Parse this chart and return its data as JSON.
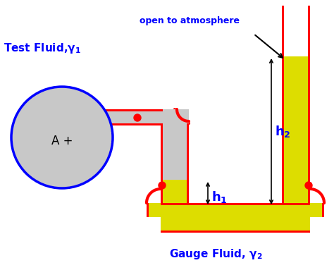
{
  "bg_color": "#ffffff",
  "tube_yellow": "#DDDD00",
  "tube_red": "#FF0000",
  "tube_gray": "#C8C8C8",
  "circle_fill": "#C8C8C8",
  "circle_edge": "#0000FF",
  "text_blue": "#0000FF",
  "text_black": "#000000",
  "dot_red": "#CC0000",
  "label_A": "A +",
  "label_atm": "open to atmosphere",
  "label_gauge": "Gauge Fluid, γ",
  "label_test": "Test Fluid,γ"
}
